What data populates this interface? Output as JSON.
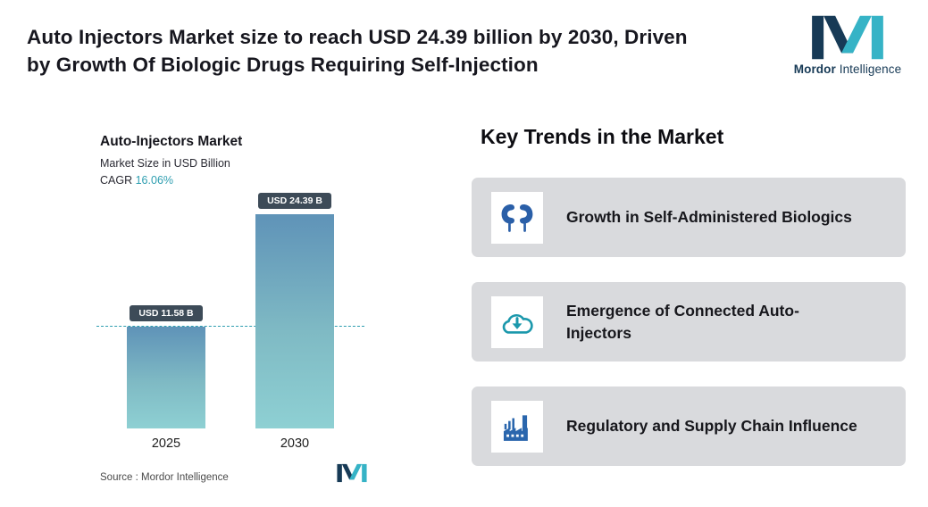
{
  "header": {
    "title_line1": "Auto Injectors Market size to reach USD 24.39 billion by 2030, Driven",
    "title_line2": "by Growth Of Biologic Drugs Requiring Self-Injection"
  },
  "brand": {
    "name_bold": "Mordor",
    "name_regular": "Intelligence"
  },
  "chart": {
    "title": "Auto-Injectors Market",
    "subtitle": "Market Size in USD Billion",
    "cagr_label": "CAGR",
    "cagr_value": "16.06%",
    "source_label": "Source :  Mordor Intelligence"
  },
  "chart_data": {
    "type": "bar",
    "title": "Auto-Injectors Market",
    "subtitle": "Market Size in USD Billion",
    "cagr": "16.06%",
    "unit": "USD Billion",
    "categories": [
      "2025",
      "2030"
    ],
    "values": [
      11.58,
      24.39
    ],
    "value_labels": [
      "USD 11.58 B",
      "USD 24.39 B"
    ],
    "ylim": [
      0,
      24.39
    ],
    "reference_line_at": 11.58,
    "grid": false,
    "legend": false
  },
  "trends": {
    "heading": "Key Trends in the Market",
    "items": [
      {
        "icon": "kidneys-icon",
        "label": "Growth in Self-Administered Biologics"
      },
      {
        "icon": "cloud-download-icon",
        "label": "Emergence of Connected Auto-Injectors"
      },
      {
        "icon": "factory-icon",
        "label": "Regulatory and Supply Chain Influence"
      }
    ]
  },
  "colors": {
    "accent_teal": "#2E9EB0",
    "bar_gradient_top": "#5F93B8",
    "bar_gradient_bottom": "#8ED0D3",
    "value_label_bg": "#3D4B58",
    "card_bg": "#D9DADD",
    "icon_blue": "#2A5FA8",
    "icon_teal": "#1B98AC",
    "logo_navy": "#173A56",
    "logo_teal": "#36B3C6"
  }
}
